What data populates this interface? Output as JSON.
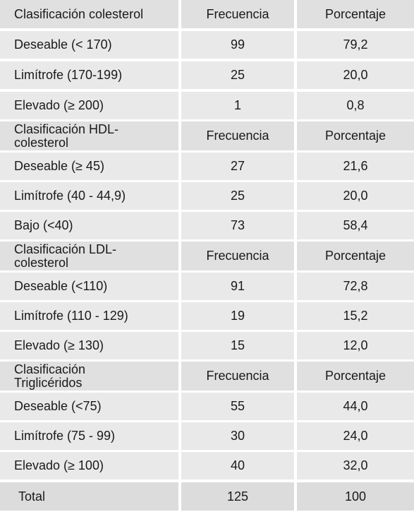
{
  "sections": [
    {
      "header": {
        "label": "Clasificación colesterol",
        "freq": "Frecuencia",
        "pct": "Porcentaje"
      },
      "rows": [
        {
          "label": "Deseable (< 170)",
          "freq": "99",
          "pct": "79,2"
        },
        {
          "label": "Limítrofe (170-199)",
          "freq": "25",
          "pct": "20,0"
        },
        {
          "label": "Elevado (≥ 200)",
          "freq": "1",
          "pct": "0,8"
        }
      ]
    },
    {
      "header": {
        "label": "Clasificación HDL-\ncolesterol",
        "freq": "Frecuencia",
        "pct": "Porcentaje"
      },
      "rows": [
        {
          "label": "Deseable (≥ 45)",
          "freq": "27",
          "pct": "21,6"
        },
        {
          "label": "Limítrofe (40 - 44,9)",
          "freq": "25",
          "pct": "20,0"
        },
        {
          "label": "Bajo (<40)",
          "freq": "73",
          "pct": "58,4"
        }
      ]
    },
    {
      "header": {
        "label": "Clasificación LDL-\ncolesterol",
        "freq": "Frecuencia",
        "pct": "Porcentaje"
      },
      "rows": [
        {
          "label": "Deseable (<110)",
          "freq": "91",
          "pct": "72,8"
        },
        {
          "label": "Limítrofe (110 - 129)",
          "freq": "19",
          "pct": "15,2"
        },
        {
          "label": "Elevado (≥ 130)",
          "freq": "15",
          "pct": "12,0"
        }
      ]
    },
    {
      "header": {
        "label": "Clasificación\nTriglicéridos",
        "freq": "Frecuencia",
        "pct": "Porcentaje"
      },
      "rows": [
        {
          "label": "Deseable (<75)",
          "freq": "55",
          "pct": "44,0"
        },
        {
          "label": "Limítrofe (75 - 99)",
          "freq": "30",
          "pct": "24,0"
        },
        {
          "label": "Elevado (≥ 100)",
          "freq": "40",
          "pct": "32,0"
        }
      ]
    }
  ],
  "total": {
    "label": "Total",
    "freq": "125",
    "pct": "100"
  }
}
